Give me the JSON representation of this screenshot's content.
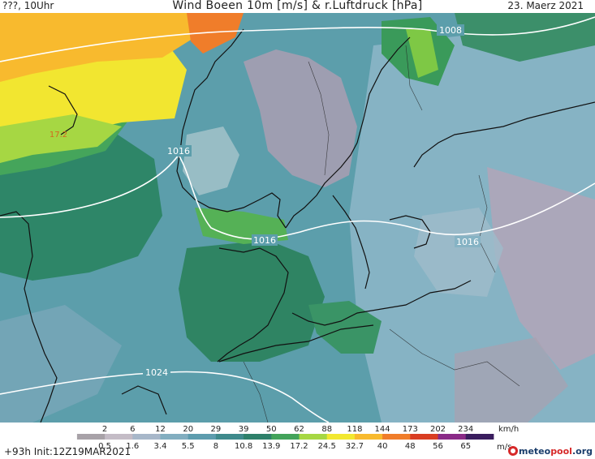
{
  "header": {
    "left": "???, 10Uhr",
    "title": "Wind Boeen 10m [m/s] & r.Luftdruck [hPa]",
    "date": "23. Maerz 2021"
  },
  "footer": {
    "forecast": "+93h Init:12Z19MAR2021"
  },
  "logo": {
    "main": "meteo",
    "accent": "pool",
    "suffix": ".org"
  },
  "isobars": {
    "labels": [
      "1008",
      "1016",
      "1016",
      "1016",
      "1024"
    ]
  },
  "gust_labels": [
    "17.2"
  ],
  "legend": {
    "unit_kmh": "km/h",
    "unit_ms": "m/s",
    "kmh": [
      "2",
      "6",
      "12",
      "20",
      "29",
      "39",
      "50",
      "62",
      "88",
      "118",
      "144",
      "173",
      "202",
      "234"
    ],
    "ms": [
      "0.5",
      "1.6",
      "3.4",
      "5.5",
      "8",
      "10.8",
      "13.9",
      "17.2",
      "24.5",
      "32.7",
      "40",
      "48",
      "56",
      "65"
    ],
    "colors": [
      "#a8a2a8",
      "#c4bcc6",
      "#a7b7c9",
      "#82aec0",
      "#5d9cae",
      "#3f8a8c",
      "#2e806a",
      "#43a35a",
      "#a6d743",
      "#f2e830",
      "#f8ba2e",
      "#f07d2a",
      "#d93d22",
      "#8a2a87",
      "#3a1d5e"
    ]
  }
}
